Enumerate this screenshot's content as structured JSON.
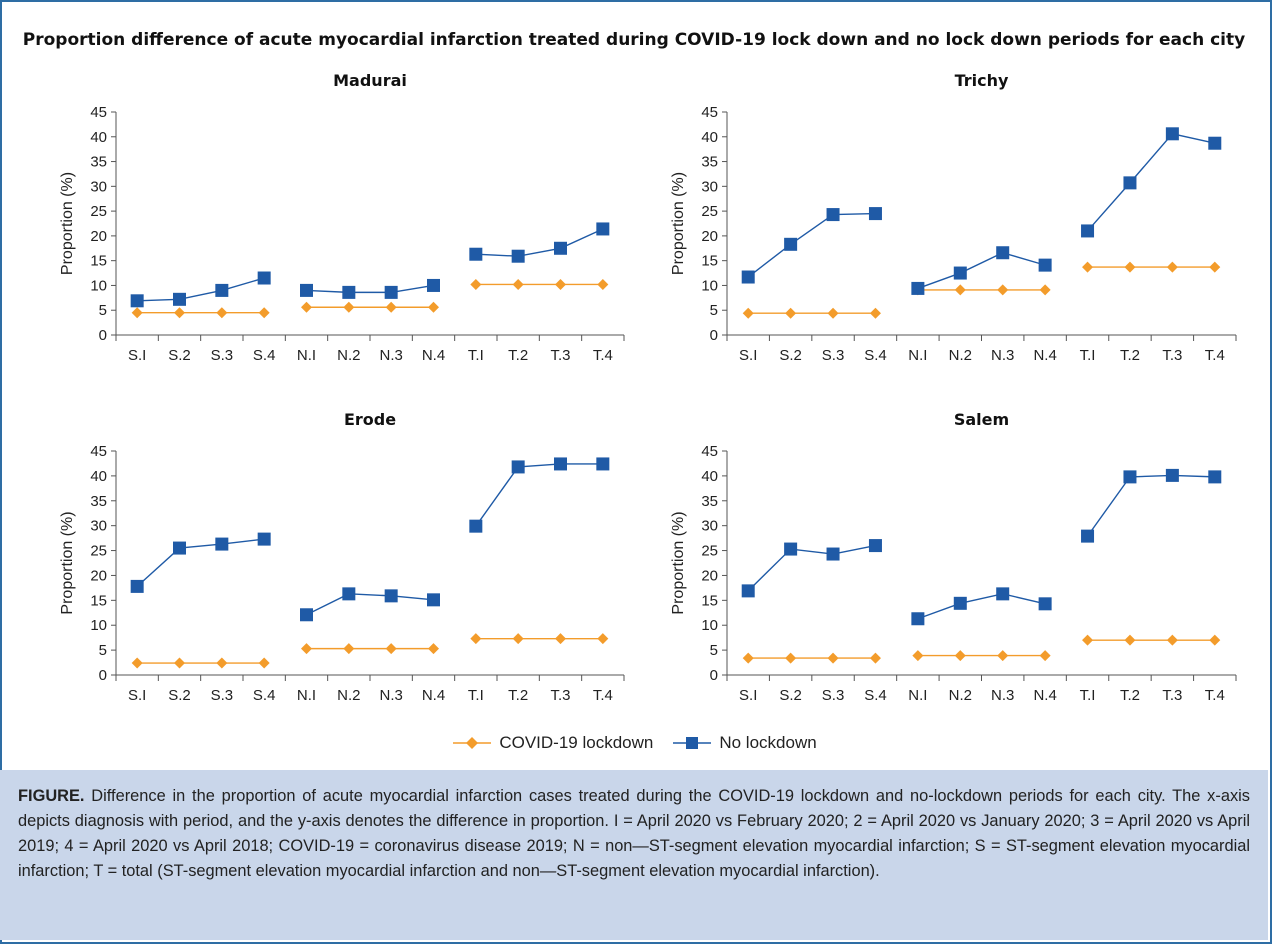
{
  "title": "Proportion difference of acute myocardial infarction treated during COVID-19 lock down and no lock down periods for each city",
  "legend": {
    "covid": "COVID-19 lockdown",
    "none": "No lockdown"
  },
  "colors": {
    "covid": "#f39c2b",
    "none": "#1f5aa6",
    "frame": "#2e6da4",
    "caption_bg": "#c9d6ea"
  },
  "caption": {
    "label": "FIGURE.",
    "text": " Difference in the proportion of acute myocardial infarction cases treated during the COVID-19 lockdown and no-lockdown periods for each city. The x-axis depicts diagnosis with period, and the y-axis denotes the difference in proportion. I = April 2020 vs February 2020; 2 = April 2020 vs January 2020; 3 = April 2020 vs April 2019; 4 = April 2020 vs April 2018; COVID-19 = coronavirus disease 2019; N = non—ST-segment elevation myocardial infarction; S = ST-segment elevation myocardial infarction; T = total (ST-segment elevation myocardial infarction and non—ST-segment elevation myocardial infarction)."
  },
  "chart_data": [
    {
      "type": "line",
      "title": "Madurai",
      "ylabel": "Proportion (%)",
      "ylim": [
        0,
        45
      ],
      "yticks": [
        0,
        5,
        10,
        15,
        20,
        25,
        30,
        35,
        40,
        45
      ],
      "categories": [
        "S.I",
        "S.2",
        "S.3",
        "S.4",
        "N.I",
        "N.2",
        "N.3",
        "N.4",
        "T.I",
        "T.2",
        "T.3",
        "T.4"
      ],
      "groups": [
        [
          0,
          3
        ],
        [
          4,
          7
        ],
        [
          8,
          11
        ]
      ],
      "series": [
        {
          "name": "COVID-19 lockdown",
          "values": [
            4.5,
            4.5,
            4.5,
            4.5,
            5.6,
            5.6,
            5.6,
            5.6,
            10.2,
            10.2,
            10.2,
            10.2
          ]
        },
        {
          "name": "No lockdown",
          "values": [
            6.9,
            7.2,
            9.0,
            11.5,
            9.0,
            8.6,
            8.6,
            10.0,
            16.3,
            15.9,
            17.5,
            21.4
          ]
        }
      ]
    },
    {
      "type": "line",
      "title": "Trichy",
      "ylabel": "Proportion (%)",
      "ylim": [
        0,
        45
      ],
      "yticks": [
        0,
        5,
        10,
        15,
        20,
        25,
        30,
        35,
        40,
        45
      ],
      "categories": [
        "S.I",
        "S.2",
        "S.3",
        "S.4",
        "N.I",
        "N.2",
        "N.3",
        "N.4",
        "T.I",
        "T.2",
        "T.3",
        "T.4"
      ],
      "groups": [
        [
          0,
          3
        ],
        [
          4,
          7
        ],
        [
          8,
          11
        ]
      ],
      "series": [
        {
          "name": "COVID-19 lockdown",
          "values": [
            4.4,
            4.4,
            4.4,
            4.4,
            9.1,
            9.1,
            9.1,
            9.1,
            13.7,
            13.7,
            13.7,
            13.7
          ]
        },
        {
          "name": "No lockdown",
          "values": [
            11.7,
            18.3,
            24.3,
            24.5,
            9.4,
            12.5,
            16.6,
            14.1,
            21.0,
            30.7,
            40.6,
            38.7
          ]
        }
      ]
    },
    {
      "type": "line",
      "title": "Erode",
      "ylabel": "Proportion (%)",
      "ylim": [
        0,
        45
      ],
      "yticks": [
        0,
        5,
        10,
        15,
        20,
        25,
        30,
        35,
        40,
        45
      ],
      "categories": [
        "S.I",
        "S.2",
        "S.3",
        "S.4",
        "N.I",
        "N.2",
        "N.3",
        "N.4",
        "T.I",
        "T.2",
        "T.3",
        "T.4"
      ],
      "groups": [
        [
          0,
          3
        ],
        [
          4,
          7
        ],
        [
          8,
          11
        ]
      ],
      "series": [
        {
          "name": "COVID-19 lockdown",
          "values": [
            2.4,
            2.4,
            2.4,
            2.4,
            5.3,
            5.3,
            5.3,
            5.3,
            7.3,
            7.3,
            7.3,
            7.3
          ]
        },
        {
          "name": "No lockdown",
          "values": [
            17.8,
            25.5,
            26.3,
            27.3,
            12.1,
            16.3,
            15.9,
            15.1,
            29.9,
            41.8,
            42.4,
            42.4
          ]
        }
      ]
    },
    {
      "type": "line",
      "title": "Salem",
      "ylabel": "Proportion (%)",
      "ylim": [
        0,
        45
      ],
      "yticks": [
        0,
        5,
        10,
        15,
        20,
        25,
        30,
        35,
        40,
        45
      ],
      "categories": [
        "S.I",
        "S.2",
        "S.3",
        "S.4",
        "N.I",
        "N.2",
        "N.3",
        "N.4",
        "T.I",
        "T.2",
        "T.3",
        "T.4"
      ],
      "groups": [
        [
          0,
          3
        ],
        [
          4,
          7
        ],
        [
          8,
          11
        ]
      ],
      "series": [
        {
          "name": "COVID-19 lockdown",
          "values": [
            3.4,
            3.4,
            3.4,
            3.4,
            3.9,
            3.9,
            3.9,
            3.9,
            7.0,
            7.0,
            7.0,
            7.0
          ]
        },
        {
          "name": "No lockdown",
          "values": [
            16.9,
            25.3,
            24.3,
            26.0,
            11.3,
            14.4,
            16.3,
            14.3,
            27.9,
            39.8,
            40.1,
            39.8
          ]
        }
      ]
    }
  ]
}
